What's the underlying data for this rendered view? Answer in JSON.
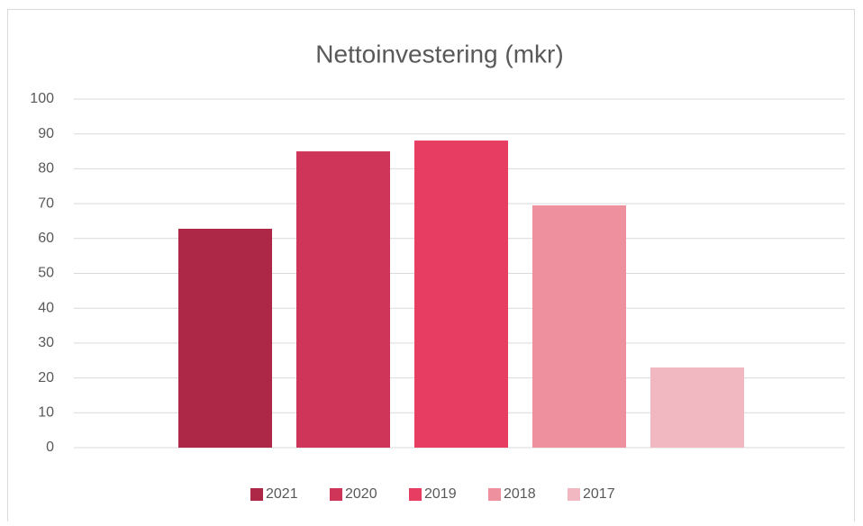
{
  "chart_data": {
    "type": "bar",
    "title": "Nettoinvestering (mkr)",
    "categories": [
      null
    ],
    "series": [
      {
        "name": "2021",
        "color": "#ad2846",
        "values": [
          62.8
        ]
      },
      {
        "name": "2020",
        "color": "#cf3558",
        "values": [
          85
        ]
      },
      {
        "name": "2019",
        "color": "#e83d63",
        "values": [
          88.1
        ]
      },
      {
        "name": "2018",
        "color": "#ee909e",
        "values": [
          69.5
        ]
      },
      {
        "name": "2017",
        "color": "#f2b8c2",
        "values": [
          23
        ]
      }
    ],
    "ylim": [
      0,
      100
    ],
    "yticks": [
      0,
      10,
      20,
      30,
      40,
      50,
      60,
      70,
      80,
      90,
      100
    ],
    "grid": true,
    "legend": "bottom"
  }
}
